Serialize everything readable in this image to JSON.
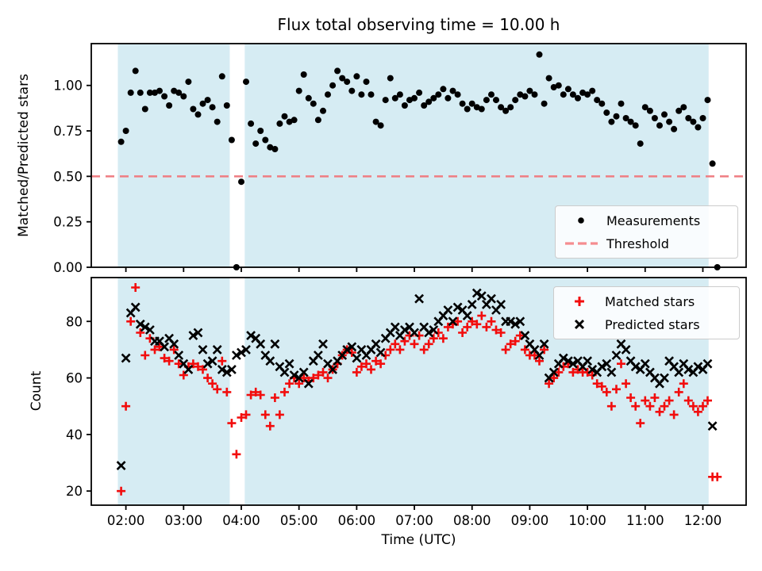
{
  "figure": {
    "title": "Flux total observing time = 10.00 h",
    "background_color": "#ffffff"
  },
  "colors": {
    "band": "#d6ecf3",
    "threshold": "#ef7d82",
    "threshold_legend": "#f58d90",
    "measurements": "#000000",
    "matched": "#f20d0d",
    "predicted": "#000000",
    "spine": "#000000"
  },
  "top_plot": {
    "ylabel": "Matched/Predicted stars",
    "ytick_values": [
      0.0,
      0.25,
      0.5,
      0.75,
      1.0
    ],
    "ytick_labels": [
      "0.00",
      "0.25",
      "0.50",
      "0.75",
      "1.00"
    ],
    "legend": [
      {
        "label": "Measurements",
        "marker": "dot"
      },
      {
        "label": "Threshold",
        "marker": "dashed-line"
      }
    ]
  },
  "bottom_plot": {
    "ylabel": "Count",
    "xlabel": "Time (UTC)",
    "ytick_values": [
      20,
      40,
      60,
      80
    ],
    "ytick_labels": [
      "20",
      "40",
      "60",
      "80"
    ],
    "legend": [
      {
        "label": "Matched stars",
        "marker": "plus"
      },
      {
        "label": "Predicted stars",
        "marker": "x"
      }
    ]
  },
  "x_axis": {
    "tick_hours": [
      2,
      3,
      4,
      5,
      6,
      7,
      8,
      9,
      10,
      11,
      12
    ],
    "tick_labels": [
      "02:00",
      "03:00",
      "04:00",
      "05:00",
      "06:00",
      "07:00",
      "08:00",
      "09:00",
      "10:00",
      "11:00",
      "12:00"
    ]
  },
  "chart_data": [
    {
      "type": "scatter",
      "title": "Flux total observing time = 10.00 h",
      "ylabel": "Matched/Predicted stars",
      "xlim_hours": [
        1.4,
        12.75
      ],
      "ylim": [
        0,
        1.23
      ],
      "x_start_hour": 1.916667,
      "x_step_hour": 0.083333,
      "shaded_windows_hours": [
        [
          1.86,
          3.8
        ],
        [
          4.06,
          12.1
        ]
      ],
      "threshold": {
        "label": "Threshold",
        "value": 0.5,
        "style": "dashed"
      },
      "series": [
        {
          "name": "Measurements",
          "marker": "dot",
          "y": [
            0.69,
            0.75,
            0.96,
            1.08,
            0.96,
            0.87,
            0.96,
            0.96,
            0.97,
            0.94,
            0.89,
            0.97,
            0.96,
            0.94,
            1.02,
            0.87,
            0.84,
            0.9,
            0.92,
            0.88,
            0.8,
            1.05,
            0.89,
            0.7,
            0.0,
            0.47,
            1.02,
            0.79,
            0.68,
            0.75,
            0.7,
            0.66,
            0.65,
            0.79,
            0.83,
            0.8,
            0.81,
            0.97,
            1.06,
            0.93,
            0.9,
            0.81,
            0.86,
            0.95,
            1.0,
            1.08,
            1.04,
            1.02,
            0.97,
            1.05,
            0.95,
            1.02,
            0.95,
            0.8,
            0.78,
            0.92,
            1.04,
            0.93,
            0.95,
            0.89,
            0.92,
            0.93,
            0.96,
            0.89,
            0.91,
            0.93,
            0.95,
            0.98,
            0.93,
            0.97,
            0.95,
            0.9,
            0.87,
            0.9,
            0.88,
            0.87,
            0.92,
            0.95,
            0.92,
            0.88,
            0.86,
            0.88,
            0.92,
            0.95,
            0.94,
            0.97,
            0.95,
            1.17,
            0.9,
            1.04,
            0.99,
            1.0,
            0.95,
            0.98,
            0.95,
            0.93,
            0.96,
            0.95,
            0.97,
            0.92,
            0.9,
            0.85,
            0.8,
            0.83,
            0.9,
            0.82,
            0.8,
            0.78,
            0.68,
            0.88,
            0.86,
            0.82,
            0.78,
            0.84,
            0.8,
            0.76,
            0.86,
            0.88,
            0.82,
            0.8,
            0.77,
            0.82,
            0.92,
            0.57,
            0.0
          ]
        }
      ]
    },
    {
      "type": "scatter",
      "ylabel": "Count",
      "xlabel": "Time (UTC)",
      "xlim_hours": [
        1.4,
        12.75
      ],
      "ylim": [
        15,
        95.5
      ],
      "x_start_hour": 1.916667,
      "x_step_hour": 0.083333,
      "shaded_windows_hours": [
        [
          1.86,
          3.8
        ],
        [
          4.06,
          12.1
        ]
      ],
      "series": [
        {
          "name": "Matched stars",
          "marker": "plus",
          "y": [
            20,
            50,
            80,
            92,
            76,
            68,
            74,
            70,
            71,
            67,
            66,
            70,
            65,
            61,
            64,
            65,
            64,
            63,
            60,
            58,
            56,
            66,
            55,
            44,
            33,
            46,
            47,
            54,
            55,
            54,
            47,
            43,
            53,
            47,
            55,
            58,
            60,
            58,
            60,
            59,
            60,
            61,
            62,
            60,
            63,
            65,
            68,
            70,
            69,
            62,
            64,
            65,
            63,
            66,
            65,
            68,
            70,
            72,
            70,
            73,
            75,
            72,
            75,
            70,
            72,
            74,
            76,
            74,
            78,
            79,
            80,
            76,
            78,
            80,
            79,
            82,
            78,
            80,
            77,
            76,
            70,
            72,
            73,
            75,
            70,
            68,
            68,
            66,
            70,
            58,
            60,
            62,
            64,
            65,
            62,
            63,
            62,
            62,
            61,
            58,
            57,
            55,
            50,
            56,
            65,
            58,
            53,
            50,
            44,
            52,
            50,
            53,
            48,
            50,
            52,
            47,
            55,
            58,
            52,
            50,
            48,
            50,
            52,
            25,
            25
          ]
        },
        {
          "name": "Predicted stars",
          "marker": "x",
          "y": [
            29,
            67,
            83,
            85,
            79,
            78,
            77,
            73,
            73,
            71,
            74,
            72,
            68,
            65,
            63,
            75,
            76,
            70,
            65,
            66,
            70,
            63,
            62,
            63,
            68,
            69,
            70,
            75,
            74,
            72,
            68,
            66,
            72,
            64,
            62,
            65,
            61,
            60,
            62,
            58,
            66,
            68,
            72,
            65,
            63,
            66,
            68,
            70,
            71,
            67,
            70,
            68,
            70,
            72,
            69,
            74,
            76,
            78,
            75,
            77,
            78,
            76,
            88,
            78,
            76,
            77,
            80,
            82,
            84,
            80,
            85,
            84,
            82,
            86,
            90,
            89,
            86,
            88,
            84,
            86,
            80,
            80,
            79,
            80,
            75,
            72,
            70,
            68,
            72,
            60,
            62,
            65,
            67,
            66,
            65,
            66,
            64,
            66,
            63,
            62,
            64,
            65,
            62,
            68,
            72,
            70,
            66,
            64,
            63,
            65,
            62,
            60,
            58,
            60,
            66,
            64,
            62,
            65,
            63,
            62,
            64,
            63,
            65,
            43,
            null
          ]
        }
      ]
    }
  ]
}
